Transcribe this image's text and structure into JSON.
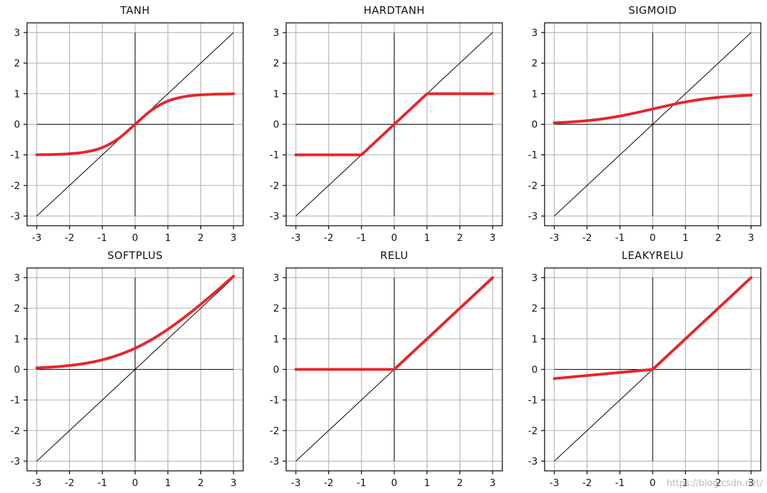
{
  "watermark": "https://blog.csdn.net/",
  "colors": {
    "curve": "#e8262a",
    "identity": "#111111",
    "grid": "#b8b8b8"
  },
  "chart_data": [
    {
      "type": "line",
      "title": "TANH",
      "xlim": [
        -3,
        3
      ],
      "ylim": [
        -3,
        3
      ],
      "xticks": [
        "-3",
        "-2",
        "-1",
        "0",
        "1",
        "2",
        "3"
      ],
      "yticks": [
        "3",
        "2",
        "1",
        "0",
        "-1",
        "-2",
        "-3"
      ],
      "grid": true,
      "reference_line": {
        "x": [
          -3,
          3
        ],
        "y": [
          -3,
          3
        ]
      },
      "series": [
        {
          "x": [
            -3,
            -2.5,
            -2,
            -1.5,
            -1,
            -0.5,
            0,
            0.5,
            1,
            1.5,
            2,
            2.5,
            3
          ],
          "y": [
            -0.995,
            -0.987,
            -0.964,
            -0.905,
            -0.762,
            -0.462,
            0,
            0.462,
            0.762,
            0.905,
            0.964,
            0.987,
            0.995
          ]
        }
      ]
    },
    {
      "type": "line",
      "title": "HARDTANH",
      "xlim": [
        -3,
        3
      ],
      "ylim": [
        -3,
        3
      ],
      "xticks": [
        "-3",
        "-2",
        "-1",
        "0",
        "1",
        "2",
        "3"
      ],
      "yticks": [
        "3",
        "2",
        "1",
        "0",
        "-1",
        "-2",
        "-3"
      ],
      "grid": true,
      "reference_line": {
        "x": [
          -3,
          3
        ],
        "y": [
          -3,
          3
        ]
      },
      "series": [
        {
          "x": [
            -3,
            -1,
            1,
            3
          ],
          "y": [
            -1,
            -1,
            1,
            1
          ]
        }
      ]
    },
    {
      "type": "line",
      "title": "SIGMOID",
      "xlim": [
        -3,
        3
      ],
      "ylim": [
        -3,
        3
      ],
      "xticks": [
        "-3",
        "-2",
        "-1",
        "0",
        "1",
        "2",
        "3"
      ],
      "yticks": [
        "3",
        "2",
        "1",
        "0",
        "-1",
        "-2",
        "-3"
      ],
      "grid": true,
      "reference_line": {
        "x": [
          -3,
          3
        ],
        "y": [
          -3,
          3
        ]
      },
      "series": [
        {
          "x": [
            -3,
            -2.5,
            -2,
            -1.5,
            -1,
            -0.5,
            0,
            0.5,
            1,
            1.5,
            2,
            2.5,
            3
          ],
          "y": [
            0.047,
            0.076,
            0.119,
            0.182,
            0.269,
            0.378,
            0.5,
            0.622,
            0.731,
            0.818,
            0.881,
            0.924,
            0.953
          ]
        }
      ]
    },
    {
      "type": "line",
      "title": "SOFTPLUS",
      "xlim": [
        -3,
        3
      ],
      "ylim": [
        -3,
        3
      ],
      "xticks": [
        "-3",
        "-2",
        "-1",
        "0",
        "1",
        "2",
        "3"
      ],
      "yticks": [
        "3",
        "2",
        "1",
        "0",
        "-1",
        "-2",
        "-3"
      ],
      "grid": true,
      "reference_line": {
        "x": [
          -3,
          3
        ],
        "y": [
          -3,
          3
        ]
      },
      "series": [
        {
          "x": [
            -3,
            -2.5,
            -2,
            -1.5,
            -1,
            -0.5,
            0,
            0.5,
            1,
            1.5,
            2,
            2.5,
            3
          ],
          "y": [
            0.049,
            0.079,
            0.127,
            0.201,
            0.313,
            0.474,
            0.693,
            0.974,
            1.313,
            1.701,
            2.127,
            2.579,
            3.049
          ]
        }
      ]
    },
    {
      "type": "line",
      "title": "RELU",
      "xlim": [
        -3,
        3
      ],
      "ylim": [
        -3,
        3
      ],
      "xticks": [
        "-3",
        "-2",
        "-1",
        "0",
        "1",
        "2",
        "3"
      ],
      "yticks": [
        "3",
        "2",
        "1",
        "0",
        "-1",
        "-2",
        "-3"
      ],
      "grid": true,
      "reference_line": {
        "x": [
          -3,
          3
        ],
        "y": [
          -3,
          3
        ]
      },
      "series": [
        {
          "x": [
            -3,
            0,
            3
          ],
          "y": [
            0,
            0,
            3
          ]
        }
      ]
    },
    {
      "type": "line",
      "title": "LEAKYRELU",
      "xlim": [
        -3,
        3
      ],
      "ylim": [
        -3,
        3
      ],
      "xticks": [
        "-3",
        "-2",
        "-1",
        "0",
        "1",
        "2",
        "3"
      ],
      "yticks": [
        "3",
        "2",
        "1",
        "0",
        "-1",
        "-2",
        "-3"
      ],
      "grid": true,
      "reference_line": {
        "x": [
          -3,
          3
        ],
        "y": [
          -3,
          3
        ]
      },
      "series": [
        {
          "x": [
            -3,
            0,
            3
          ],
          "y": [
            -0.3,
            0,
            3
          ]
        }
      ]
    }
  ]
}
